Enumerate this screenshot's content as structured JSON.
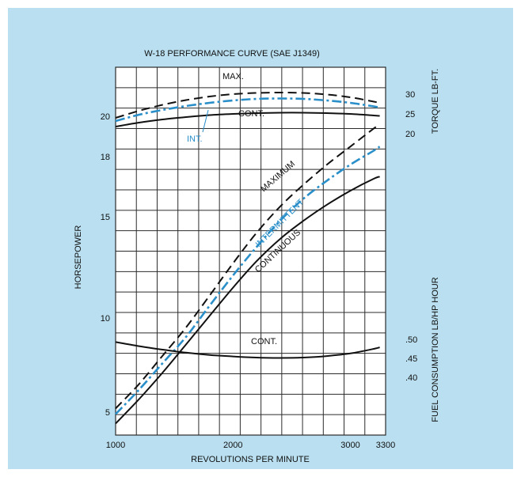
{
  "chart_data": {
    "type": "line",
    "title": "W-18 PERFORMANCE CURVE (SAE J1349)",
    "xlabel": "REVOLUTIONS PER MINUTE",
    "ylabel_left": "HORSEPOWER",
    "ylabel_right_top": "TORQUE LB-FT.",
    "ylabel_right_bottom": "FUEL CONSUMPTION LB/HP HOUR",
    "xlim": [
      1000,
      3300
    ],
    "x_ticks": [
      "1000",
      "2000",
      "3000",
      "3300"
    ],
    "hp_ticks": [
      "5",
      "10",
      "15",
      "18",
      "20"
    ],
    "torque_ticks": [
      "30",
      "25",
      "20"
    ],
    "fuel_ticks": [
      ".50",
      ".45",
      ".40"
    ],
    "grid": true,
    "colors": {
      "background": "#b9dff0",
      "plot": "#ffffff",
      "grid": "#2b2b2b",
      "black_series": "#111111",
      "blue_series": "#2a8fc9"
    },
    "series": [
      {
        "name": "MAXIMUM",
        "group": "horsepower",
        "style": "dashed",
        "color": "#111111",
        "x": [
          1000,
          1200,
          1400,
          1600,
          1800,
          2000,
          2200,
          2400,
          2600,
          2800,
          3000,
          3200,
          3250
        ],
        "y": [
          5.2,
          6.5,
          8.0,
          9.5,
          11.1,
          12.7,
          14.2,
          15.5,
          16.6,
          17.6,
          18.5,
          19.4,
          19.6
        ]
      },
      {
        "name": "INTERMITTENT",
        "group": "horsepower",
        "style": "dash-dot",
        "color": "#2a8fc9",
        "x": [
          1000,
          1200,
          1400,
          1600,
          1800,
          2000,
          2200,
          2400,
          2600,
          2800,
          3000,
          3200,
          3250
        ],
        "y": [
          4.9,
          6.2,
          7.6,
          9.0,
          10.6,
          12.1,
          13.5,
          14.8,
          15.9,
          16.8,
          17.6,
          18.3,
          18.5
        ]
      },
      {
        "name": "CONTINUOUS",
        "group": "horsepower",
        "style": "solid",
        "color": "#111111",
        "x": [
          1000,
          1200,
          1400,
          1600,
          1800,
          2000,
          2200,
          2400,
          2600,
          2800,
          3000,
          3200,
          3250
        ],
        "y": [
          4.4,
          5.7,
          7.1,
          8.6,
          10.1,
          11.5,
          12.8,
          13.9,
          14.8,
          15.6,
          16.3,
          16.9,
          17.0
        ]
      },
      {
        "name": "MAX.",
        "group": "torque",
        "style": "dashed",
        "color": "#111111",
        "x": [
          1000,
          1200,
          1400,
          1600,
          1800,
          2000,
          2200,
          2400,
          2600,
          2800,
          3000,
          3200,
          3250
        ],
        "y": [
          24.0,
          25.8,
          27.3,
          28.5,
          29.4,
          30.0,
          30.3,
          30.4,
          30.3,
          29.9,
          29.2,
          28.1,
          27.8
        ]
      },
      {
        "name": "INT.",
        "group": "torque",
        "style": "dash-dot",
        "color": "#2a8fc9",
        "x": [
          1000,
          1200,
          1400,
          1600,
          1800,
          2000,
          2200,
          2400,
          2600,
          2800,
          3000,
          3200,
          3250
        ],
        "y": [
          23.2,
          24.8,
          26.0,
          27.0,
          27.8,
          28.4,
          28.8,
          28.9,
          28.8,
          28.4,
          27.8,
          26.9,
          26.6
        ]
      },
      {
        "name": "CONT.",
        "group": "torque",
        "style": "solid",
        "color": "#111111",
        "x": [
          1000,
          1200,
          1400,
          1600,
          1800,
          2000,
          2200,
          2400,
          2600,
          2800,
          3000,
          3200,
          3250
        ],
        "y": [
          21.8,
          22.8,
          23.6,
          24.2,
          24.7,
          25.0,
          25.2,
          25.3,
          25.3,
          25.2,
          25.0,
          24.6,
          24.5
        ]
      },
      {
        "name": "CONT.",
        "group": "fuel",
        "style": "solid",
        "color": "#111111",
        "x": [
          1000,
          1200,
          1400,
          1600,
          1800,
          2000,
          2200,
          2400,
          2600,
          2800,
          3000,
          3200,
          3250
        ],
        "y": [
          0.493,
          0.482,
          0.473,
          0.465,
          0.459,
          0.455,
          0.452,
          0.451,
          0.452,
          0.456,
          0.463,
          0.475,
          0.479
        ]
      }
    ],
    "annotations": [
      "MAX.",
      "CONT.",
      "INT.",
      "MAXIMUM",
      "INTERMITTENT",
      "CONTINUOUS",
      "CONT."
    ]
  }
}
